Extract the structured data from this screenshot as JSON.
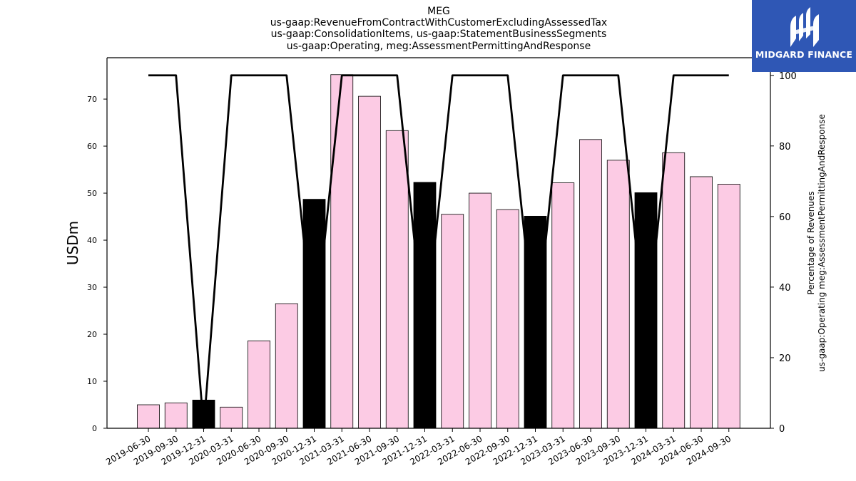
{
  "chart_data": {
    "type": "bar",
    "title_lines": [
      "MEG",
      "us-gaap:RevenueFromContractWithCustomerExcludingAssessedTax",
      "us-gaap:ConsolidationItems, us-gaap:StatementBusinessSegments",
      "us-gaap:Operating, meg:AssessmentPermittingAndResponse"
    ],
    "ylabel": "USDm",
    "ylabel_right": [
      "Percentage of Revenues",
      "us-gaap:Operating meg:AssessmentPermittingAndResponse"
    ],
    "categories": [
      "2019-06-30",
      "2019-09-30",
      "2019-12-31",
      "2020-03-31",
      "2020-06-30",
      "2020-09-30",
      "2020-12-31",
      "2021-03-31",
      "2021-06-30",
      "2021-09-30",
      "2021-12-31",
      "2022-03-31",
      "2022-06-30",
      "2022-09-30",
      "2022-12-31",
      "2023-03-31",
      "2023-06-30",
      "2023-09-30",
      "2023-12-31",
      "2024-03-31",
      "2024-06-30",
      "2024-09-30"
    ],
    "series": [
      {
        "type": "bar",
        "values": [
          5.0,
          5.4,
          6.0,
          4.5,
          18.6,
          26.5,
          48.7,
          75.2,
          70.6,
          63.3,
          52.3,
          45.5,
          50.0,
          46.5,
          45.1,
          52.2,
          61.4,
          57.0,
          50.1,
          58.6,
          53.5,
          51.9
        ],
        "annual_flags": [
          false,
          false,
          true,
          false,
          false,
          false,
          true,
          false,
          false,
          false,
          true,
          false,
          false,
          false,
          true,
          false,
          false,
          false,
          true,
          false,
          false,
          false
        ]
      },
      {
        "type": "line",
        "axis": "right",
        "values": [
          100,
          100,
          0,
          100,
          100,
          100,
          25,
          100,
          100,
          100,
          25,
          100,
          100,
          100,
          25,
          100,
          100,
          100,
          25,
          100,
          100,
          100
        ]
      }
    ],
    "ylim": [
      0,
      78.8
    ],
    "yticks": [
      0,
      10,
      20,
      30,
      40,
      50,
      60,
      70
    ],
    "ylim_right": [
      0,
      105
    ],
    "yticks_right": [
      0,
      20,
      40,
      60,
      80,
      100
    ],
    "colors": {
      "bar": "#fccbe4",
      "bar_annual": "#000000",
      "line": "#000000",
      "edge": "#000000"
    },
    "grid": false
  },
  "logo": {
    "text": "MIDGARD FINANCE",
    "bg": "#2f57b5"
  }
}
